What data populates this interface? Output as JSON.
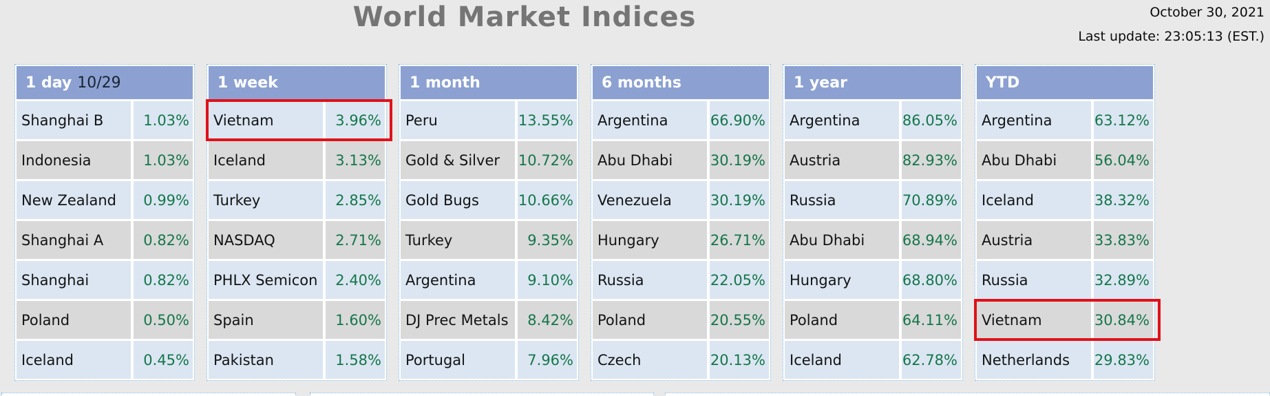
{
  "page": {
    "title": "World Market Indices",
    "date": "October 30, 2021",
    "last_update": "Last update: 23:05:13 (EST.)"
  },
  "colors": {
    "header_blue": "#8ca1d2",
    "row_light_blue": "#dbe6f2",
    "row_grey": "#d9d9d9",
    "positive_green": "#15764a",
    "highlight_red": "#e01119",
    "border_dotted_blue": "#76b4e4",
    "title_grey": "#757575"
  },
  "tables": [
    {
      "period": "1 day",
      "period_suffix": "10/29",
      "highlight_row": null,
      "rows": [
        {
          "name": "Shanghai B",
          "value": "1.03%"
        },
        {
          "name": "Indonesia",
          "value": "1.03%"
        },
        {
          "name": "New Zealand",
          "value": "0.99%"
        },
        {
          "name": "Shanghai A",
          "value": "0.82%"
        },
        {
          "name": "Shanghai",
          "value": "0.82%"
        },
        {
          "name": "Poland",
          "value": "0.50%"
        },
        {
          "name": "Iceland",
          "value": "0.45%"
        }
      ]
    },
    {
      "period": "1 week",
      "period_suffix": "",
      "highlight_row": 0,
      "rows": [
        {
          "name": "Vietnam",
          "value": "3.96%"
        },
        {
          "name": "Iceland",
          "value": "3.13%"
        },
        {
          "name": "Turkey",
          "value": "2.85%"
        },
        {
          "name": "NASDAQ",
          "value": "2.71%"
        },
        {
          "name": "PHLX Semicon",
          "value": "2.40%"
        },
        {
          "name": "Spain",
          "value": "1.60%"
        },
        {
          "name": "Pakistan",
          "value": "1.58%"
        }
      ]
    },
    {
      "period": "1 month",
      "period_suffix": "",
      "highlight_row": null,
      "rows": [
        {
          "name": "Peru",
          "value": "13.55%"
        },
        {
          "name": "Gold & Silver",
          "value": "10.72%"
        },
        {
          "name": "Gold Bugs",
          "value": "10.66%"
        },
        {
          "name": "Turkey",
          "value": "9.35%"
        },
        {
          "name": "Argentina",
          "value": "9.10%"
        },
        {
          "name": "DJ Prec Metals",
          "value": "8.42%"
        },
        {
          "name": "Portugal",
          "value": "7.96%"
        }
      ]
    },
    {
      "period": "6 months",
      "period_suffix": "",
      "highlight_row": null,
      "rows": [
        {
          "name": "Argentina",
          "value": "66.90%"
        },
        {
          "name": "Abu Dhabi",
          "value": "30.19%"
        },
        {
          "name": "Venezuela",
          "value": "30.19%"
        },
        {
          "name": "Hungary",
          "value": "26.71%"
        },
        {
          "name": "Russia",
          "value": "22.05%"
        },
        {
          "name": "Poland",
          "value": "20.55%"
        },
        {
          "name": "Czech",
          "value": "20.13%"
        }
      ]
    },
    {
      "period": "1 year",
      "period_suffix": "",
      "highlight_row": null,
      "rows": [
        {
          "name": "Argentina",
          "value": "86.05%"
        },
        {
          "name": "Austria",
          "value": "82.93%"
        },
        {
          "name": "Russia",
          "value": "70.89%"
        },
        {
          "name": "Abu Dhabi",
          "value": "68.94%"
        },
        {
          "name": "Hungary",
          "value": "68.80%"
        },
        {
          "name": "Poland",
          "value": "64.11%"
        },
        {
          "name": "Iceland",
          "value": "62.78%"
        }
      ]
    },
    {
      "period": "YTD",
      "period_suffix": "",
      "highlight_row": 5,
      "rows": [
        {
          "name": "Argentina",
          "value": "63.12%"
        },
        {
          "name": "Abu Dhabi",
          "value": "56.04%"
        },
        {
          "name": "Iceland",
          "value": "38.32%"
        },
        {
          "name": "Austria",
          "value": "33.83%"
        },
        {
          "name": "Russia",
          "value": "32.89%"
        },
        {
          "name": "Vietnam",
          "value": "30.84%"
        },
        {
          "name": "Netherlands",
          "value": "29.83%"
        }
      ]
    }
  ]
}
